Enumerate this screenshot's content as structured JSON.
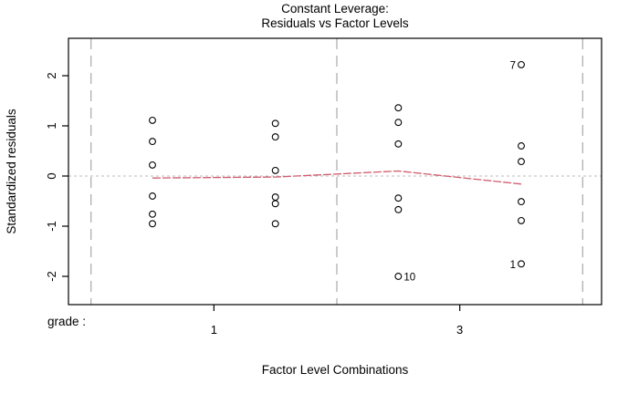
{
  "title": {
    "line1": "Constant Leverage:",
    "line2": "Residuals vs Factor Levels"
  },
  "axes": {
    "x_title": "Factor Level Combinations",
    "y_title": "Standardized residuals",
    "factor_label": "grade :"
  },
  "colors": {
    "mean_line": "#d25a6c",
    "boundary_dash": "#b0b0b0",
    "zero_dotted": "#bbbbbb",
    "frame": "#000000",
    "point_stroke": "#000000",
    "text": "#000000"
  },
  "chart_data": {
    "type": "scatter",
    "title": "Constant Leverage: Residuals vs Factor Levels",
    "xlabel": "Factor Level Combinations",
    "ylabel": "Standardized residuals",
    "factor_name": "grade",
    "ylim": [
      -2.56,
      2.75
    ],
    "xlim": [
      0.5,
      4.5
    ],
    "grid": "factor-boundaries-dashed, zero-line-dotted",
    "legend": "none",
    "y_ticks": [
      {
        "pos": -2,
        "label": "-2"
      },
      {
        "pos": -1,
        "label": "-1"
      },
      {
        "pos": 0,
        "label": "0"
      },
      {
        "pos": 1,
        "label": "1"
      },
      {
        "pos": 2,
        "label": "2"
      }
    ],
    "x_ticks": [
      {
        "pos": 1.5,
        "label": "1"
      },
      {
        "pos": 3.5,
        "label": "3"
      }
    ],
    "x_boundaries": [
      0.5,
      2.5,
      4.5
    ],
    "groups": [
      {
        "x": 1,
        "values": [
          1.11,
          0.69,
          0.22,
          -0.4,
          -0.76,
          -0.95
        ]
      },
      {
        "x": 2,
        "values": [
          1.05,
          0.78,
          0.11,
          -0.42,
          -0.55,
          -0.95
        ]
      },
      {
        "x": 3,
        "values": [
          1.36,
          1.07,
          0.64,
          -0.44,
          -0.67,
          -2.0
        ]
      },
      {
        "x": 4,
        "values": [
          2.22,
          0.6,
          0.29,
          -0.51,
          -0.89,
          -1.75
        ]
      }
    ],
    "labeled_points": [
      {
        "label": "7",
        "group": 4,
        "value": 2.22,
        "side": "left"
      },
      {
        "label": "10",
        "group": 3,
        "value": -2.0,
        "side": "right"
      },
      {
        "label": "1",
        "group": 4,
        "value": -1.75,
        "side": "left"
      }
    ],
    "mean_line": [
      {
        "x": 1,
        "y": -0.04
      },
      {
        "x": 2,
        "y": -0.02
      },
      {
        "x": 3,
        "y": 0.1
      },
      {
        "x": 4,
        "y": -0.16
      }
    ]
  }
}
